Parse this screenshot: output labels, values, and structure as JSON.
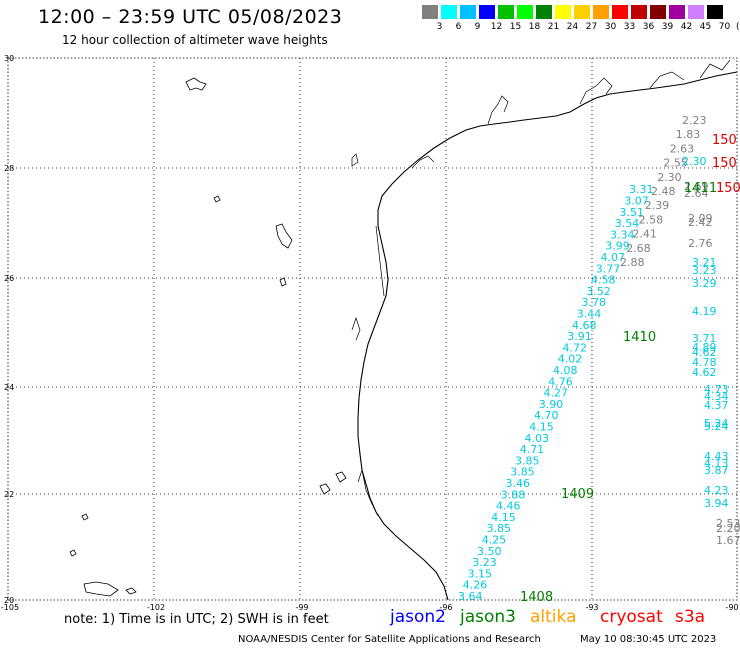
{
  "title": "12:00 – 23:59 UTC 05/08/2023",
  "subtitle": "12 hour collection of altimeter wave heights",
  "colorbar": {
    "unit": "(ft)",
    "colors": [
      "#808080",
      "#00ffff",
      "#00c0ff",
      "#0000ff",
      "#00c000",
      "#00ff00",
      "#008000",
      "#ffff00",
      "#ffd000",
      "#ffa000",
      "#ff0000",
      "#c00000",
      "#800000",
      "#a000a0",
      "#d080ff",
      "#000000"
    ],
    "labels": [
      "3",
      "6",
      "9",
      "12",
      "15",
      "18",
      "21",
      "24",
      "27",
      "30",
      "33",
      "36",
      "39",
      "42",
      "45",
      "70"
    ]
  },
  "axes": {
    "lon_ticks": [
      "-105",
      "-102",
      "-99",
      "-96",
      "-93",
      "-90"
    ],
    "lat_ticks": [
      "30",
      "28",
      "26",
      "24",
      "22",
      "20"
    ]
  },
  "footer": {
    "note": "note:  1) Time is in UTC;  2) SWH is in feet",
    "credit": "NOAA/NESDIS Center for Satellite Applications and Research",
    "timestamp": "May 10 08:30:45 UTC 2023"
  },
  "satellites": [
    {
      "name": "jason2",
      "color": "#0000ff"
    },
    {
      "name": "jason3",
      "color": "#008000"
    },
    {
      "name": "altika",
      "color": "#ffa000"
    },
    {
      "name": "cryosat",
      "color": "#ff0000"
    },
    {
      "name": "s3a",
      "color": "#ff0000"
    }
  ],
  "colors": {
    "cyan": "#00ccdd",
    "gray": "#808080",
    "green": "#008000",
    "red": "#dd0000"
  },
  "track_values": {
    "main_cyan": [
      "3.64",
      "4.26",
      "3.15",
      "3.23",
      "3.50",
      "4.25",
      "3.85",
      "4.15",
      "4.46",
      "3.88",
      "3.46",
      "3.85",
      "3.85",
      "4.71",
      "4.03",
      "4.15",
      "4.70",
      "3.90",
      "4.27",
      "4.76",
      "4.08",
      "4.02",
      "4.72",
      "3.91",
      "4.68",
      "3.44",
      "3.78",
      "3.52",
      "4.58",
      "3.77",
      "4.07",
      "3.99",
      "3.34",
      "3.54",
      "3.51",
      "3.07",
      "3.31"
    ],
    "main_gray": [
      "2.88",
      "2.68",
      "2.41",
      "2.58",
      "2.39",
      "2.48",
      "2.30",
      "2.55",
      "2.63",
      "1.83",
      "2.23"
    ],
    "right_gray": [
      "2.69",
      "2.64",
      "2.09",
      "2.42",
      "2.76"
    ],
    "right_cyan": [
      "2.30",
      "3.21",
      "3.23",
      "3.29",
      "4.19",
      "3.71",
      "4.89",
      "4.62",
      "4.78",
      "4.62",
      "4.73",
      "4.34",
      "4.37",
      "5.24",
      "5.24",
      "4.43",
      "4.13",
      "3.87",
      "4.23",
      "3.94"
    ],
    "far_right_gray": [
      "2.53",
      "2.20",
      "1.67"
    ],
    "pass_labels": [
      "1408",
      "1409",
      "1410",
      "1411"
    ],
    "cryosat_labels": [
      "150",
      "150",
      "150"
    ]
  }
}
